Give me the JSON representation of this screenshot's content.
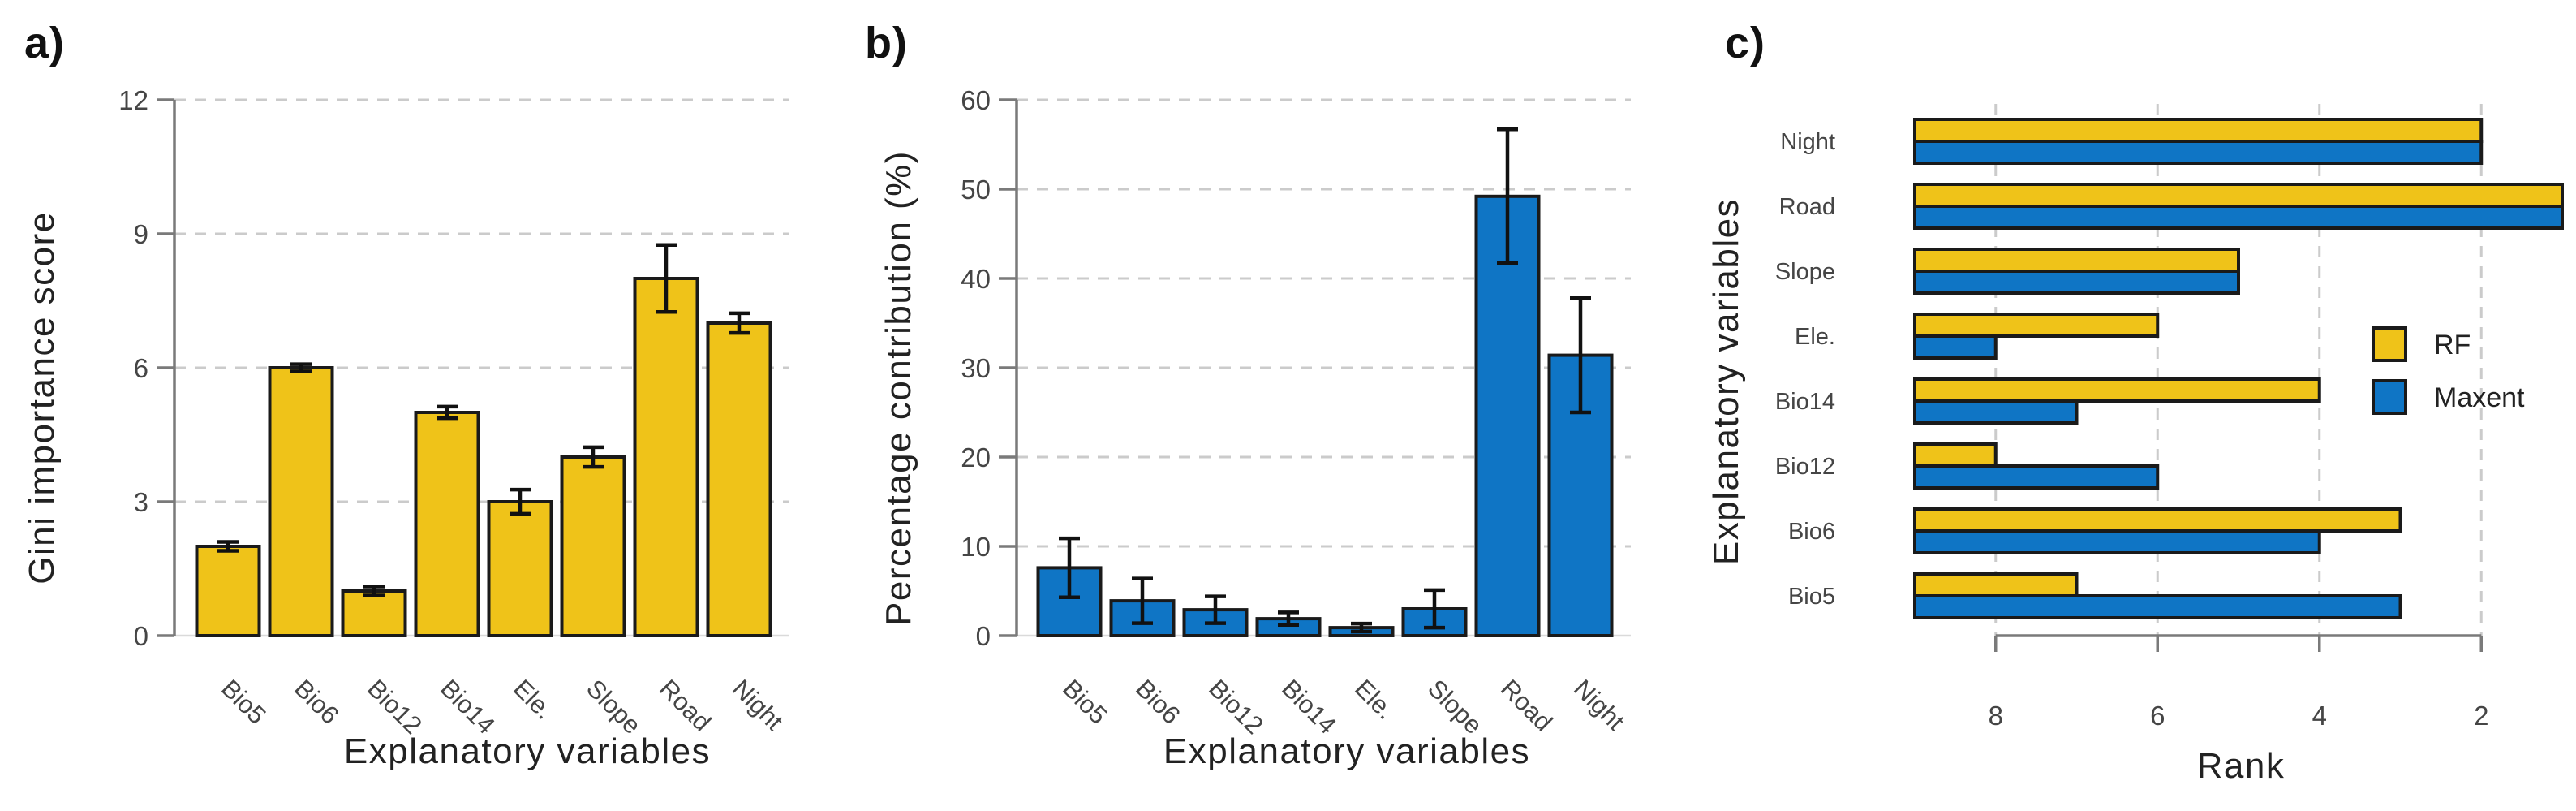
{
  "figure": {
    "background": "#ffffff",
    "panel_labels": [
      "a)",
      "b)",
      "c)"
    ]
  },
  "colors": {
    "rf_yellow": "#EFC319",
    "maxent_blue": "#0F75C5",
    "bar_border": "#1A1A1A",
    "error_bar": "#111111",
    "axis_gray": "#7A7A7A",
    "grid_gray": "#CBCBCB",
    "baseline_gray": "#DADADA",
    "tick_text": "#454545",
    "label_text": "#222222"
  },
  "chart_data": [
    {
      "id": "a",
      "panel_label": "a)",
      "type": "bar",
      "orientation": "vertical",
      "xlabel": "Explanatory variables",
      "ylabel": "Gini importance score",
      "categories": [
        "Bio5",
        "Bio6",
        "Bio12",
        "Bio14",
        "Ele.",
        "Slope",
        "Road",
        "Night"
      ],
      "values": [
        2.0,
        6.0,
        1.0,
        5.0,
        3.0,
        4.0,
        8.0,
        7.0
      ],
      "errors": [
        0.1,
        0.08,
        0.1,
        0.13,
        0.27,
        0.22,
        0.75,
        0.22
      ],
      "ylim": [
        0,
        12
      ],
      "yticks": [
        0,
        3,
        6,
        9,
        12
      ],
      "grid": "horizontal-dashed",
      "bar_color": "#EFC319",
      "series_name": "RF"
    },
    {
      "id": "b",
      "panel_label": "b)",
      "type": "bar",
      "orientation": "vertical",
      "xlabel": "Explanatory variables",
      "ylabel": "Percentage contribution (%)",
      "categories": [
        "Bio5",
        "Bio6",
        "Bio12",
        "Bio14",
        "Ele.",
        "Slope",
        "Road",
        "Night"
      ],
      "values": [
        7.6,
        3.9,
        2.9,
        1.9,
        0.9,
        3.0,
        49.2,
        31.4
      ],
      "errors": [
        3.3,
        2.5,
        1.5,
        0.7,
        0.45,
        2.1,
        7.5,
        6.4
      ],
      "ylim": [
        0,
        60
      ],
      "yticks": [
        0,
        10,
        20,
        30,
        40,
        50,
        60
      ],
      "grid": "horizontal-dashed",
      "bar_color": "#0F75C5",
      "series_name": "Maxent"
    },
    {
      "id": "c",
      "panel_label": "c)",
      "type": "bar",
      "orientation": "horizontal",
      "xlabel": "Rank",
      "ylabel": "Explanatory variables",
      "categories": [
        "Night",
        "Road",
        "Slope",
        "Ele.",
        "Bio14",
        "Bio12",
        "Bio6",
        "Bio5"
      ],
      "series": [
        {
          "name": "RF",
          "color": "#EFC319",
          "values": [
            2,
            1,
            5,
            6,
            4,
            8,
            3,
            7
          ]
        },
        {
          "name": "Maxent",
          "color": "#0F75C5",
          "values": [
            2,
            1,
            5,
            8,
            7,
            6,
            4,
            3
          ]
        }
      ],
      "xlim": [
        9,
        1
      ],
      "xaxis_reversed": true,
      "xticks": [
        8,
        6,
        4,
        2
      ],
      "grid": "vertical-dashed",
      "legend": {
        "entries": [
          "RF",
          "Maxent"
        ],
        "position": "middle-right"
      }
    }
  ]
}
